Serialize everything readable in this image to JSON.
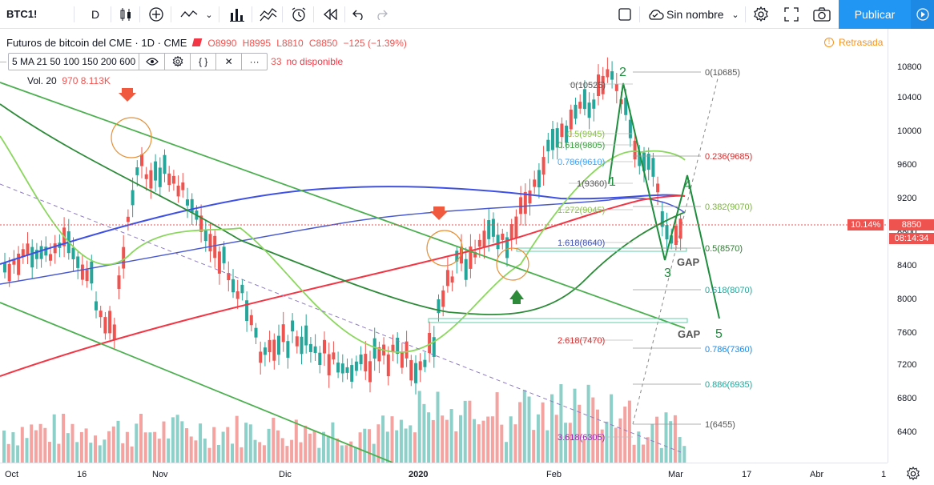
{
  "toolbar": {
    "symbol": "BTC1!",
    "interval": "D",
    "layout_name": "Sin nombre",
    "publish_label": "Publicar"
  },
  "legend": {
    "title": "Futuros de bitcoin del CME · 1D · CME",
    "open": "O8990",
    "high": "H8995",
    "low": "L8810",
    "close": "C8850",
    "change": "−125 (−1.39%)",
    "ma_label": "5 MA 21 50 100 150 200 600",
    "ma_unavailable": "no disponible",
    "ma_unavailable_prefix": "33",
    "vol_label": "Vol. 20",
    "vol_value1": "970",
    "vol_value2": "8.113K",
    "delayed": "Retrasada"
  },
  "price_axis": {
    "ticks": [
      "10800",
      "10400",
      "10000",
      "9600",
      "9200",
      "8800",
      "8400",
      "8000",
      "7600",
      "7200",
      "6800",
      "6400"
    ],
    "current_price": "8850",
    "current_change_pct": "10.14%",
    "countdown": "08:14:34"
  },
  "time_axis": {
    "ticks": [
      "Oct",
      "16",
      "Nov",
      "Dic",
      "2020",
      "Feb",
      "Mar",
      "17",
      "Abr",
      "1"
    ]
  },
  "annotations": {
    "fib_top": [
      "0(10685)",
      "0.236(9685)",
      "0.382(9070)",
      "0.5(8570)",
      "0.618(8070)",
      "0.786(7360)",
      "0.886(6935)",
      "1(6455)"
    ],
    "fib_retrace": [
      "0(10525)",
      "0.5(9945)",
      "0.618(9805)",
      "0.786(9610)",
      "1(9360)",
      "1.272(9045)",
      "1.618(8640)",
      "2.618(7470)",
      "3.618(6305)"
    ],
    "wave_labels": [
      "1",
      "2",
      "3",
      "4",
      "5"
    ],
    "gap_labels": [
      "GAP",
      "GAP"
    ]
  },
  "colors": {
    "accent": "#2196f3",
    "bull": "#26a69a",
    "bear": "#ef5350",
    "wave": "#1e8e3e"
  }
}
